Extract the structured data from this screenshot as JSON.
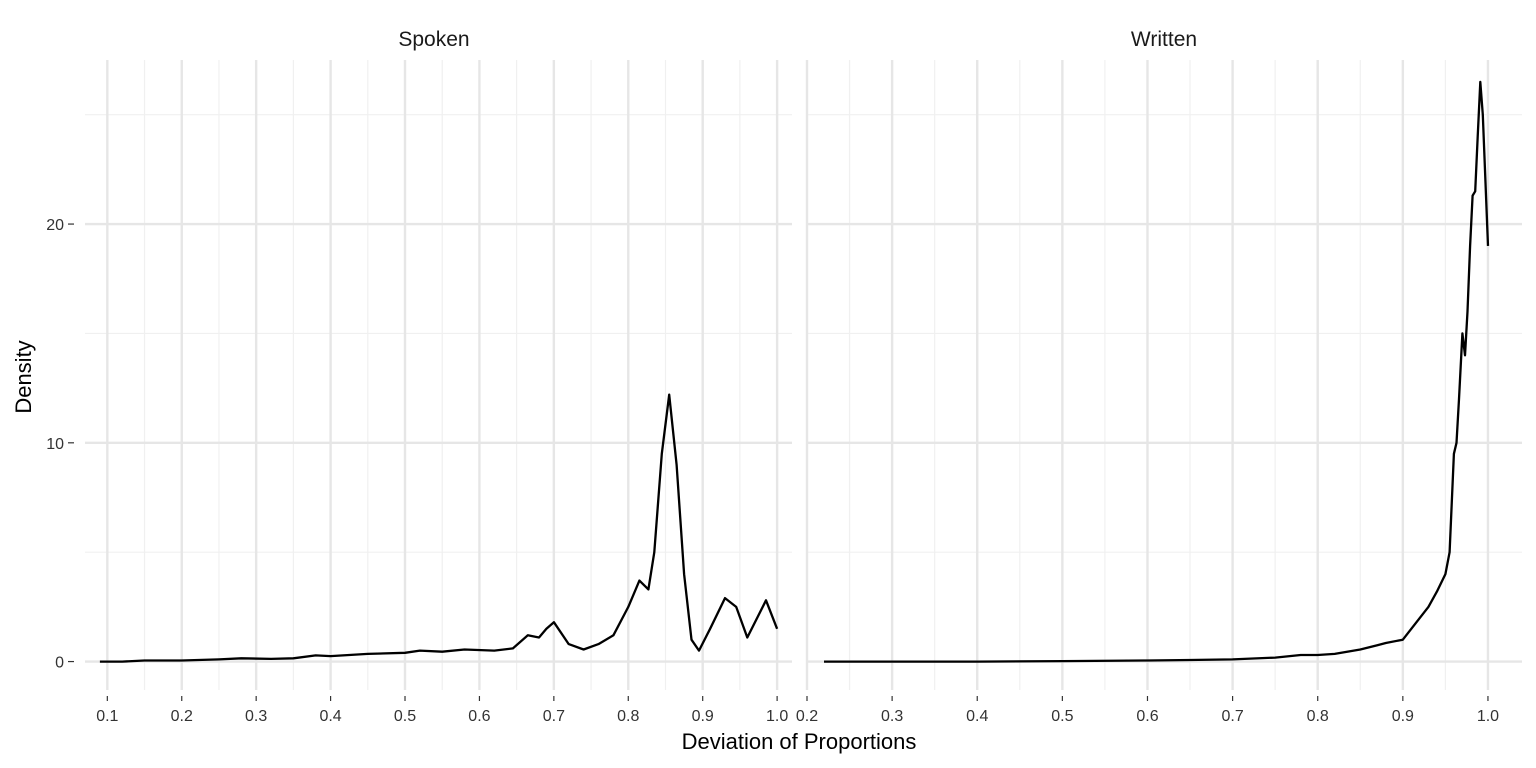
{
  "chart_data": {
    "type": "line",
    "xlabel": "Deviation of Proportions",
    "ylabel": "Density",
    "grid": true,
    "legend": "none",
    "line_color": "#000000",
    "y_ticks": [
      "0",
      "10",
      "20"
    ],
    "y_tick_values": [
      0,
      10,
      20
    ],
    "ylim": [
      -1.3,
      27.5
    ],
    "panels": [
      {
        "name": "spoken",
        "title": "Spoken",
        "xlim": [
          0.07,
          1.02
        ],
        "x_ticks": [
          "0.1",
          "0.2",
          "0.3",
          "0.4",
          "0.5",
          "0.6",
          "0.7",
          "0.8",
          "0.9",
          "1.0"
        ],
        "x_tick_values": [
          0.1,
          0.2,
          0.3,
          0.4,
          0.5,
          0.6,
          0.7,
          0.8,
          0.9,
          1.0
        ],
        "x": [
          0.09,
          0.12,
          0.15,
          0.2,
          0.25,
          0.28,
          0.32,
          0.35,
          0.38,
          0.4,
          0.45,
          0.5,
          0.52,
          0.55,
          0.58,
          0.62,
          0.645,
          0.665,
          0.68,
          0.69,
          0.7,
          0.72,
          0.74,
          0.76,
          0.78,
          0.8,
          0.815,
          0.827,
          0.835,
          0.845,
          0.855,
          0.865,
          0.875,
          0.885,
          0.895,
          0.91,
          0.93,
          0.945,
          0.96,
          0.985,
          1.0
        ],
        "y": [
          0.0,
          0.0,
          0.05,
          0.05,
          0.1,
          0.15,
          0.12,
          0.15,
          0.28,
          0.25,
          0.35,
          0.4,
          0.5,
          0.45,
          0.55,
          0.5,
          0.6,
          1.2,
          1.1,
          1.5,
          1.8,
          0.8,
          0.55,
          0.8,
          1.2,
          2.5,
          3.7,
          3.3,
          5.0,
          9.5,
          12.2,
          9.0,
          4.0,
          1.0,
          0.5,
          1.5,
          2.9,
          2.5,
          1.1,
          2.8,
          1.5
        ]
      },
      {
        "name": "written",
        "title": "Written",
        "xlim": [
          0.2,
          1.04
        ],
        "x_ticks": [
          "0.2",
          "0.3",
          "0.4",
          "0.5",
          "0.6",
          "0.7",
          "0.8",
          "0.9",
          "1.0"
        ],
        "x_tick_values": [
          0.2,
          0.3,
          0.4,
          0.5,
          0.6,
          0.7,
          0.8,
          0.9,
          1.0
        ],
        "x": [
          0.22,
          0.3,
          0.4,
          0.5,
          0.6,
          0.65,
          0.7,
          0.75,
          0.78,
          0.8,
          0.82,
          0.85,
          0.87,
          0.88,
          0.9,
          0.91,
          0.92,
          0.93,
          0.94,
          0.95,
          0.955,
          0.96,
          0.963,
          0.966,
          0.97,
          0.973,
          0.976,
          0.979,
          0.982,
          0.985,
          0.988,
          0.991,
          0.994,
          0.997,
          1.0
        ],
        "y": [
          0.0,
          0.0,
          0.0,
          0.02,
          0.05,
          0.07,
          0.1,
          0.18,
          0.3,
          0.3,
          0.35,
          0.55,
          0.75,
          0.85,
          1.0,
          1.5,
          2.0,
          2.5,
          3.2,
          4.0,
          5.0,
          9.5,
          10.0,
          12.0,
          15.0,
          14.0,
          16.0,
          19.0,
          21.3,
          21.5,
          24.0,
          26.5,
          25.0,
          22.0,
          19.0
        ]
      }
    ]
  }
}
